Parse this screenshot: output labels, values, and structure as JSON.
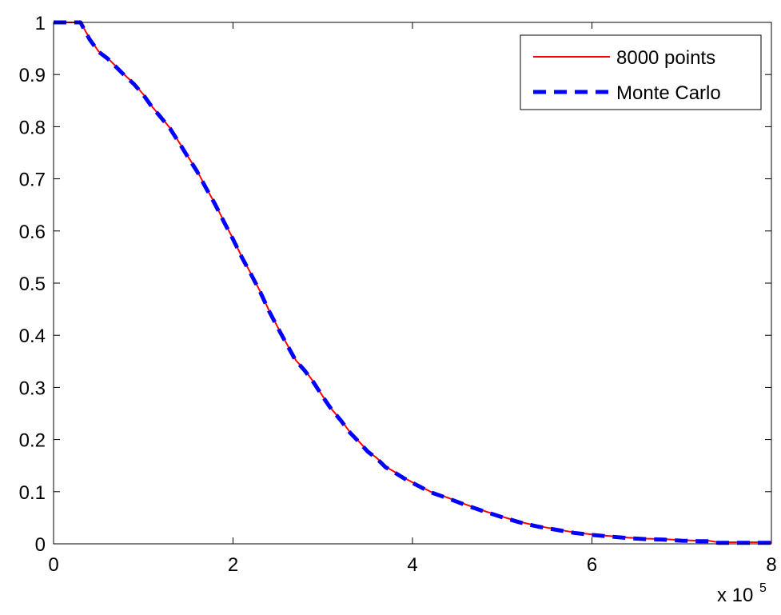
{
  "chart_data": {
    "type": "line",
    "title": "",
    "xlabel": "",
    "ylabel": "",
    "x_multiplier_label": "x 10",
    "x_multiplier_exponent": "5",
    "xlim": [
      0,
      800000
    ],
    "ylim": [
      0,
      1
    ],
    "x_ticks": [
      {
        "value": 0,
        "label": "0"
      },
      {
        "value": 200000,
        "label": "2"
      },
      {
        "value": 400000,
        "label": "4"
      },
      {
        "value": 600000,
        "label": "6"
      },
      {
        "value": 800000,
        "label": "8"
      }
    ],
    "y_ticks": [
      {
        "value": 0,
        "label": "0"
      },
      {
        "value": 0.1,
        "label": "0.1"
      },
      {
        "value": 0.2,
        "label": "0.2"
      },
      {
        "value": 0.3,
        "label": "0.3"
      },
      {
        "value": 0.4,
        "label": "0.4"
      },
      {
        "value": 0.5,
        "label": "0.5"
      },
      {
        "value": 0.6,
        "label": "0.6"
      },
      {
        "value": 0.7,
        "label": "0.7"
      },
      {
        "value": 0.8,
        "label": "0.8"
      },
      {
        "value": 0.9,
        "label": "0.9"
      },
      {
        "value": 1,
        "label": "1"
      }
    ],
    "grid": false,
    "legend": {
      "position": "top-right"
    },
    "series": [
      {
        "name": "8000 points",
        "color": "#ff0000",
        "style": "solid",
        "x": [
          0,
          30000,
          40000,
          50000,
          60000,
          70000,
          80000,
          90000,
          100000,
          110000,
          120000,
          130000,
          140000,
          150000,
          160000,
          170000,
          180000,
          190000,
          200000,
          210000,
          220000,
          230000,
          240000,
          250000,
          260000,
          270000,
          280000,
          290000,
          300000,
          310000,
          320000,
          330000,
          340000,
          350000,
          360000,
          370000,
          380000,
          390000,
          400000,
          420000,
          440000,
          460000,
          480000,
          500000,
          520000,
          540000,
          560000,
          580000,
          600000,
          620000,
          640000,
          660000,
          680000,
          700000,
          720000,
          730000,
          740000,
          760000,
          780000,
          800000
        ],
        "y": [
          1.0,
          1.0,
          0.97,
          0.945,
          0.932,
          0.915,
          0.898,
          0.882,
          0.862,
          0.838,
          0.818,
          0.797,
          0.77,
          0.742,
          0.715,
          0.683,
          0.652,
          0.618,
          0.585,
          0.55,
          0.518,
          0.485,
          0.448,
          0.415,
          0.383,
          0.352,
          0.333,
          0.31,
          0.283,
          0.258,
          0.238,
          0.215,
          0.197,
          0.178,
          0.165,
          0.148,
          0.138,
          0.127,
          0.118,
          0.1,
          0.088,
          0.075,
          0.063,
          0.052,
          0.042,
          0.034,
          0.028,
          0.022,
          0.018,
          0.015,
          0.012,
          0.01,
          0.009,
          0.007,
          0.006,
          0.006,
          0.003,
          0.003,
          0.003,
          0.003
        ]
      },
      {
        "name": "Monte Carlo",
        "color": "#0000ff",
        "style": "dashed",
        "x": [
          0,
          30000,
          40000,
          50000,
          60000,
          70000,
          80000,
          90000,
          100000,
          110000,
          120000,
          130000,
          140000,
          150000,
          160000,
          170000,
          180000,
          190000,
          200000,
          210000,
          220000,
          230000,
          240000,
          250000,
          260000,
          270000,
          280000,
          290000,
          300000,
          310000,
          320000,
          330000,
          340000,
          350000,
          360000,
          370000,
          380000,
          390000,
          400000,
          420000,
          440000,
          460000,
          480000,
          500000,
          520000,
          540000,
          560000,
          580000,
          600000,
          620000,
          640000,
          660000,
          680000,
          700000,
          720000,
          730000,
          740000,
          760000,
          780000,
          800000
        ],
        "y": [
          1.0,
          1.0,
          0.968,
          0.944,
          0.931,
          0.914,
          0.897,
          0.881,
          0.861,
          0.837,
          0.817,
          0.796,
          0.769,
          0.741,
          0.714,
          0.682,
          0.651,
          0.617,
          0.584,
          0.549,
          0.517,
          0.484,
          0.447,
          0.414,
          0.382,
          0.351,
          0.332,
          0.309,
          0.282,
          0.257,
          0.237,
          0.214,
          0.196,
          0.177,
          0.164,
          0.147,
          0.137,
          0.126,
          0.117,
          0.099,
          0.087,
          0.074,
          0.062,
          0.051,
          0.041,
          0.033,
          0.027,
          0.021,
          0.017,
          0.014,
          0.011,
          0.009,
          0.008,
          0.006,
          0.005,
          0.005,
          0.002,
          0.002,
          0.002,
          0.002
        ]
      }
    ]
  }
}
